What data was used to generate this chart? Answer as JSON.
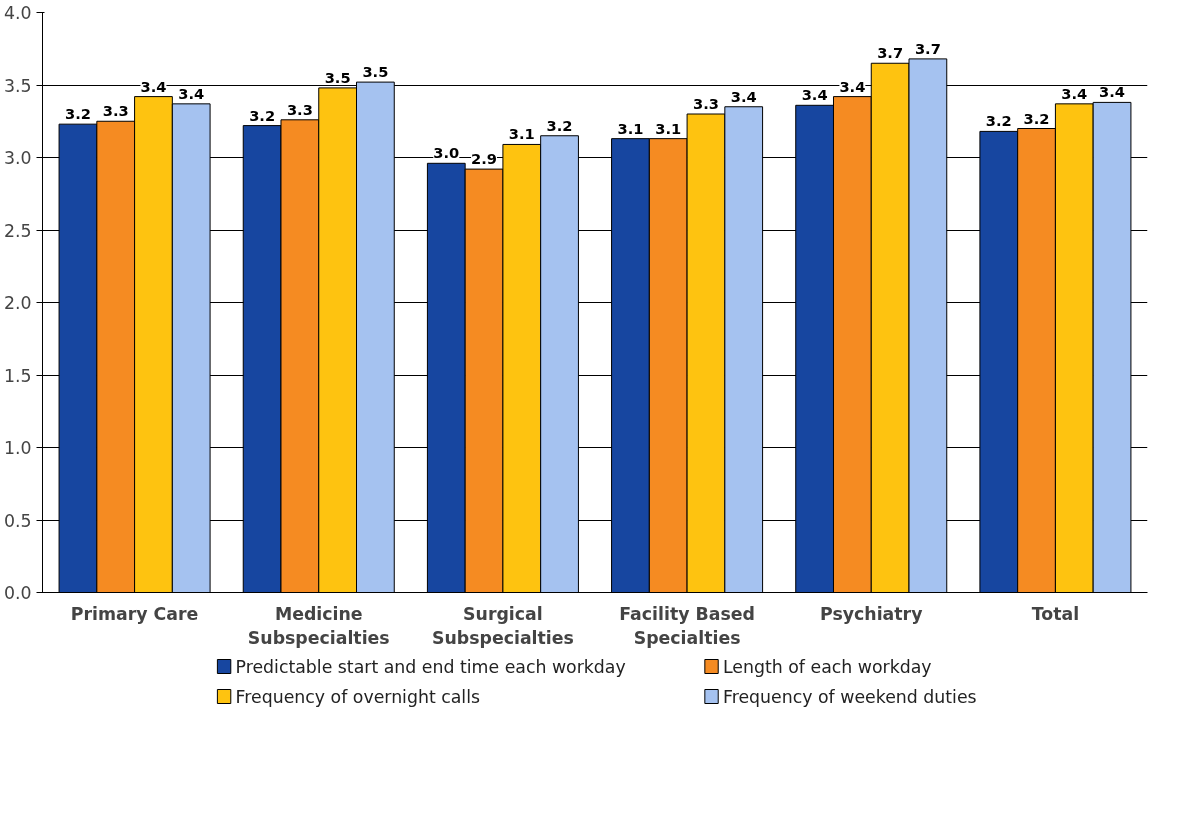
{
  "chart_data": {
    "type": "bar",
    "categories": [
      "Primary Care",
      "Medicine\nSubspecialties",
      "Surgical\nSubspecialties",
      "Facility Based\nSpecialties",
      "Psychiatry",
      "Total"
    ],
    "series": [
      {
        "name": "Predictable start and end time each workday",
        "color": "#1746a0",
        "values": [
          3.23,
          3.22,
          2.96,
          3.13,
          3.36,
          3.18
        ],
        "value_labels": [
          "3.2",
          "3.2",
          "3.0",
          "3.1",
          "3.4",
          "3.2"
        ]
      },
      {
        "name": "Length of each workday",
        "color": "#f58b22",
        "values": [
          3.25,
          3.26,
          2.92,
          3.13,
          3.42,
          3.2
        ],
        "value_labels": [
          "3.3",
          "3.3",
          "2.9",
          "3.1",
          "3.4",
          "3.2"
        ]
      },
      {
        "name": "Frequency of overnight calls",
        "color": "#fec310",
        "values": [
          3.42,
          3.48,
          3.09,
          3.3,
          3.65,
          3.37
        ],
        "value_labels": [
          "3.4",
          "3.5",
          "3.1",
          "3.3",
          "3.7",
          "3.4"
        ]
      },
      {
        "name": "Frequency of weekend duties",
        "color": "#a5c2f0",
        "values": [
          3.37,
          3.52,
          3.15,
          3.35,
          3.68,
          3.38
        ],
        "value_labels": [
          "3.4",
          "3.5",
          "3.2",
          "3.4",
          "3.7",
          "3.4"
        ]
      }
    ],
    "ylim": [
      0,
      4
    ],
    "yticks": [
      {
        "value": 0,
        "label": "0.0"
      },
      {
        "value": 0.5,
        "label": "0.5"
      },
      {
        "value": 1,
        "label": "1.0"
      },
      {
        "value": 1.5,
        "label": "1.5"
      },
      {
        "value": 2,
        "label": "2.0"
      },
      {
        "value": 2.5,
        "label": "2.5"
      },
      {
        "value": 3,
        "label": "3.0"
      },
      {
        "value": 3.5,
        "label": "3.5"
      },
      {
        "value": 4,
        "label": "4.0"
      }
    ],
    "grid": "y",
    "legend": "bottom"
  }
}
